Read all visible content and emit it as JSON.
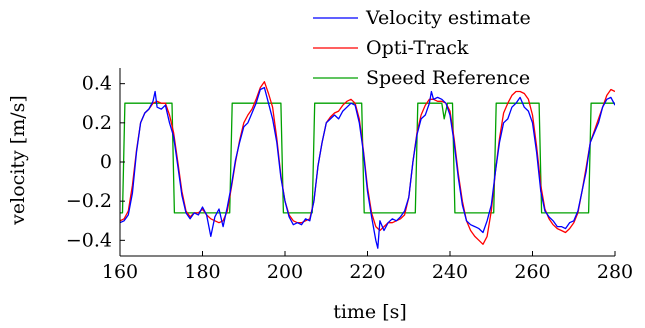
{
  "chart_data": {
    "type": "line",
    "xlabel": "time [s]",
    "ylabel": "velocity [m/s]",
    "xlim": [
      160,
      280
    ],
    "ylim": [
      -0.48,
      0.48
    ],
    "xticks": [
      160,
      180,
      200,
      220,
      240,
      260,
      280
    ],
    "xtick_labels": [
      "160",
      "180",
      "200",
      "220",
      "240",
      "260",
      "280"
    ],
    "yticks": [
      -0.4,
      -0.2,
      0,
      0.2,
      0.4
    ],
    "ytick_labels": [
      "−0.4",
      "−0.2",
      "0",
      "0.2",
      "0.4"
    ],
    "grid": false,
    "legend": "top-right",
    "series": [
      {
        "name": "Velocity estimate",
        "color": "#0000ff",
        "points": [
          [
            160,
            -0.31
          ],
          [
            161,
            -0.3
          ],
          [
            162,
            -0.27
          ],
          [
            163,
            -0.16
          ],
          [
            164,
            0.05
          ],
          [
            165,
            0.2
          ],
          [
            166,
            0.25
          ],
          [
            167,
            0.27
          ],
          [
            168,
            0.31
          ],
          [
            168.5,
            0.36
          ],
          [
            169,
            0.28
          ],
          [
            170,
            0.27
          ],
          [
            171,
            0.29
          ],
          [
            172,
            0.2
          ],
          [
            173,
            0.13
          ],
          [
            174,
            -0.02
          ],
          [
            175,
            -0.17
          ],
          [
            176,
            -0.26
          ],
          [
            177,
            -0.29
          ],
          [
            178,
            -0.26
          ],
          [
            179,
            -0.27
          ],
          [
            180,
            -0.23
          ],
          [
            181,
            -0.27
          ],
          [
            182,
            -0.38
          ],
          [
            183,
            -0.28
          ],
          [
            184,
            -0.24
          ],
          [
            185,
            -0.33
          ],
          [
            186,
            -0.23
          ],
          [
            187,
            -0.12
          ],
          [
            188,
            0.01
          ],
          [
            189,
            0.1
          ],
          [
            190,
            0.18
          ],
          [
            191,
            0.2
          ],
          [
            192,
            0.25
          ],
          [
            193,
            0.3
          ],
          [
            194,
            0.37
          ],
          [
            195,
            0.38
          ],
          [
            196,
            0.3
          ],
          [
            197,
            0.22
          ],
          [
            198,
            0.1
          ],
          [
            199,
            -0.08
          ],
          [
            200,
            -0.2
          ],
          [
            201,
            -0.28
          ],
          [
            202,
            -0.32
          ],
          [
            203,
            -0.31
          ],
          [
            204,
            -0.32
          ],
          [
            205,
            -0.29
          ],
          [
            206,
            -0.3
          ],
          [
            207,
            -0.2
          ],
          [
            208,
            -0.02
          ],
          [
            209,
            0.1
          ],
          [
            210,
            0.2
          ],
          [
            211,
            0.22
          ],
          [
            212,
            0.24
          ],
          [
            213,
            0.22
          ],
          [
            214,
            0.26
          ],
          [
            215,
            0.28
          ],
          [
            216,
            0.3
          ],
          [
            217,
            0.29
          ],
          [
            218,
            0.2
          ],
          [
            219,
            0.05
          ],
          [
            220,
            -0.15
          ],
          [
            221,
            -0.28
          ],
          [
            222,
            -0.4
          ],
          [
            222.5,
            -0.44
          ],
          [
            223,
            -0.3
          ],
          [
            224,
            -0.35
          ],
          [
            225,
            -0.31
          ],
          [
            226,
            -0.29
          ],
          [
            227,
            -0.3
          ],
          [
            228,
            -0.28
          ],
          [
            229,
            -0.25
          ],
          [
            230,
            -0.18
          ],
          [
            231,
            0.0
          ],
          [
            232,
            0.14
          ],
          [
            233,
            0.22
          ],
          [
            234,
            0.24
          ],
          [
            235,
            0.3
          ],
          [
            235.5,
            0.36
          ],
          [
            236,
            0.32
          ],
          [
            237,
            0.33
          ],
          [
            238,
            0.32
          ],
          [
            239,
            0.3
          ],
          [
            240,
            0.24
          ],
          [
            241,
            0.1
          ],
          [
            242,
            -0.08
          ],
          [
            243,
            -0.22
          ],
          [
            244,
            -0.3
          ],
          [
            245,
            -0.32
          ],
          [
            246,
            -0.33
          ],
          [
            247,
            -0.34
          ],
          [
            248,
            -0.36
          ],
          [
            249,
            -0.3
          ],
          [
            250,
            -0.22
          ],
          [
            251,
            -0.05
          ],
          [
            252,
            0.1
          ],
          [
            253,
            0.2
          ],
          [
            254,
            0.22
          ],
          [
            255,
            0.28
          ],
          [
            256,
            0.3
          ],
          [
            257,
            0.33
          ],
          [
            258,
            0.28
          ],
          [
            259,
            0.26
          ],
          [
            260,
            0.2
          ],
          [
            261,
            0.05
          ],
          [
            262,
            -0.15
          ],
          [
            263,
            -0.25
          ],
          [
            264,
            -0.28
          ],
          [
            265,
            -0.3
          ],
          [
            266,
            -0.33
          ],
          [
            267,
            -0.33
          ],
          [
            268,
            -0.34
          ],
          [
            269,
            -0.31
          ],
          [
            270,
            -0.3
          ],
          [
            271,
            -0.25
          ],
          [
            272,
            -0.15
          ],
          [
            273,
            -0.05
          ],
          [
            274,
            0.1
          ],
          [
            275,
            0.15
          ],
          [
            276,
            0.2
          ],
          [
            277,
            0.28
          ],
          [
            278,
            0.32
          ],
          [
            279,
            0.33
          ],
          [
            280,
            0.29
          ]
        ]
      },
      {
        "name": "Opti-Track",
        "color": "#ff0000",
        "points": [
          [
            160,
            -0.3
          ],
          [
            161,
            -0.29
          ],
          [
            162,
            -0.25
          ],
          [
            163,
            -0.12
          ],
          [
            164,
            0.06
          ],
          [
            165,
            0.2
          ],
          [
            166,
            0.25
          ],
          [
            167,
            0.27
          ],
          [
            168,
            0.3
          ],
          [
            169,
            0.31
          ],
          [
            170,
            0.3
          ],
          [
            171,
            0.3
          ],
          [
            172,
            0.24
          ],
          [
            173,
            0.15
          ],
          [
            174,
            0.0
          ],
          [
            175,
            -0.15
          ],
          [
            176,
            -0.25
          ],
          [
            177,
            -0.28
          ],
          [
            178,
            -0.26
          ],
          [
            179,
            -0.26
          ],
          [
            180,
            -0.24
          ],
          [
            181,
            -0.27
          ],
          [
            182,
            -0.29
          ],
          [
            183,
            -0.3
          ],
          [
            184,
            -0.31
          ],
          [
            185,
            -0.3
          ],
          [
            186,
            -0.25
          ],
          [
            187,
            -0.13
          ],
          [
            188,
            0.0
          ],
          [
            189,
            0.11
          ],
          [
            190,
            0.2
          ],
          [
            191,
            0.24
          ],
          [
            192,
            0.27
          ],
          [
            193,
            0.32
          ],
          [
            194,
            0.38
          ],
          [
            195,
            0.41
          ],
          [
            196,
            0.35
          ],
          [
            197,
            0.28
          ],
          [
            198,
            0.12
          ],
          [
            199,
            -0.07
          ],
          [
            200,
            -0.2
          ],
          [
            201,
            -0.27
          ],
          [
            202,
            -0.3
          ],
          [
            203,
            -0.31
          ],
          [
            204,
            -0.31
          ],
          [
            205,
            -0.3
          ],
          [
            206,
            -0.29
          ],
          [
            207,
            -0.2
          ],
          [
            208,
            -0.02
          ],
          [
            209,
            0.1
          ],
          [
            210,
            0.2
          ],
          [
            211,
            0.23
          ],
          [
            212,
            0.25
          ],
          [
            213,
            0.26
          ],
          [
            214,
            0.29
          ],
          [
            215,
            0.31
          ],
          [
            216,
            0.32
          ],
          [
            217,
            0.3
          ],
          [
            218,
            0.22
          ],
          [
            219,
            0.06
          ],
          [
            220,
            -0.13
          ],
          [
            221,
            -0.26
          ],
          [
            222,
            -0.33
          ],
          [
            223,
            -0.35
          ],
          [
            224,
            -0.33
          ],
          [
            225,
            -0.31
          ],
          [
            226,
            -0.31
          ],
          [
            227,
            -0.3
          ],
          [
            228,
            -0.29
          ],
          [
            229,
            -0.27
          ],
          [
            230,
            -0.18
          ],
          [
            231,
            0.0
          ],
          [
            232,
            0.15
          ],
          [
            233,
            0.24
          ],
          [
            234,
            0.29
          ],
          [
            235,
            0.32
          ],
          [
            236,
            0.32
          ],
          [
            237,
            0.31
          ],
          [
            238,
            0.31
          ],
          [
            239,
            0.3
          ],
          [
            240,
            0.26
          ],
          [
            241,
            0.12
          ],
          [
            242,
            -0.06
          ],
          [
            243,
            -0.2
          ],
          [
            244,
            -0.3
          ],
          [
            245,
            -0.35
          ],
          [
            246,
            -0.38
          ],
          [
            247,
            -0.4
          ],
          [
            248,
            -0.42
          ],
          [
            249,
            -0.38
          ],
          [
            250,
            -0.25
          ],
          [
            251,
            -0.05
          ],
          [
            252,
            0.12
          ],
          [
            253,
            0.25
          ],
          [
            254,
            0.3
          ],
          [
            255,
            0.34
          ],
          [
            256,
            0.36
          ],
          [
            257,
            0.36
          ],
          [
            258,
            0.35
          ],
          [
            259,
            0.32
          ],
          [
            260,
            0.24
          ],
          [
            261,
            0.08
          ],
          [
            262,
            -0.12
          ],
          [
            263,
            -0.24
          ],
          [
            264,
            -0.29
          ],
          [
            265,
            -0.32
          ],
          [
            266,
            -0.34
          ],
          [
            267,
            -0.35
          ],
          [
            268,
            -0.36
          ],
          [
            269,
            -0.34
          ],
          [
            270,
            -0.31
          ],
          [
            271,
            -0.26
          ],
          [
            272,
            -0.15
          ],
          [
            273,
            -0.03
          ],
          [
            274,
            0.1
          ],
          [
            275,
            0.16
          ],
          [
            276,
            0.22
          ],
          [
            277,
            0.28
          ],
          [
            278,
            0.34
          ],
          [
            279,
            0.37
          ],
          [
            280,
            0.36
          ]
        ]
      },
      {
        "name": "Speed Reference",
        "color": "#00a000",
        "points": [
          [
            160,
            -0.26
          ],
          [
            160.6,
            -0.26
          ],
          [
            161.2,
            0.3
          ],
          [
            172.6,
            0.3
          ],
          [
            173.2,
            -0.26
          ],
          [
            186.6,
            -0.26
          ],
          [
            187.2,
            0.3
          ],
          [
            199.0,
            0.3
          ],
          [
            199.6,
            -0.26
          ],
          [
            206.6,
            -0.26
          ],
          [
            207.2,
            0.3
          ],
          [
            218.6,
            0.3
          ],
          [
            219.2,
            -0.26
          ],
          [
            231.6,
            -0.26
          ],
          [
            232.2,
            0.3
          ],
          [
            238.0,
            0.3
          ],
          [
            238.6,
            0.22
          ],
          [
            239.4,
            0.3
          ],
          [
            240.6,
            0.3
          ],
          [
            241.2,
            -0.26
          ],
          [
            250.6,
            -0.26
          ],
          [
            251.2,
            0.3
          ],
          [
            261.6,
            0.3
          ],
          [
            262.2,
            -0.26
          ],
          [
            273.6,
            -0.26
          ],
          [
            274.2,
            0.3
          ],
          [
            280,
            0.3
          ]
        ]
      }
    ]
  }
}
